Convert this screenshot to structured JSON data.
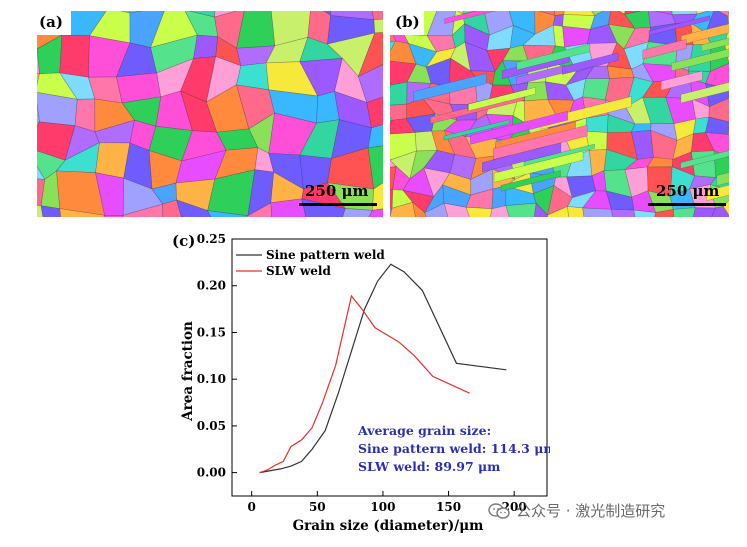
{
  "panels": {
    "a": {
      "label": "(a)",
      "scale_bar": "250 μm"
    },
    "b": {
      "label": "(b)",
      "scale_bar": "250 μm"
    },
    "c": {
      "label": "(c)"
    }
  },
  "chart_data": {
    "type": "line",
    "title": "",
    "xlabel": "Grain size (diameter)/μm",
    "ylabel": "Area fraction",
    "xlim": [
      -15,
      225
    ],
    "ylim": [
      -0.025,
      0.25
    ],
    "xticks": [
      0,
      50,
      100,
      150,
      200
    ],
    "yticks": [
      0.0,
      0.05,
      0.1,
      0.15,
      0.2,
      0.25
    ],
    "ytick_labels": [
      "0.00",
      "0.05",
      "0.10",
      "0.15",
      "0.20",
      "0.25"
    ],
    "legend_position": "top-left",
    "series": [
      {
        "name": "Sine pattern weld",
        "color": "#333333",
        "x": [
          6,
          14,
          22,
          30,
          38,
          46,
          56,
          66,
          76,
          86,
          96,
          106,
          116,
          130,
          156,
          194
        ],
        "y": [
          0.0,
          0.002,
          0.004,
          0.007,
          0.012,
          0.025,
          0.045,
          0.085,
          0.13,
          0.175,
          0.205,
          0.223,
          0.215,
          0.195,
          0.117,
          0.11
        ]
      },
      {
        "name": "SLW weld",
        "color": "#e8312a",
        "x": [
          6,
          12,
          18,
          24,
          30,
          38,
          46,
          54,
          64,
          76,
          84,
          94,
          112,
          124,
          138,
          166
        ],
        "y": [
          0.0,
          0.003,
          0.008,
          0.012,
          0.028,
          0.035,
          0.048,
          0.075,
          0.115,
          0.189,
          0.175,
          0.155,
          0.14,
          0.125,
          0.103,
          0.085
        ]
      }
    ],
    "annotation": {
      "color": "#2b2fb3",
      "lines": [
        "Average grain size:",
        "Sine pattern weld: 114.3 μm",
        "SLW weld: 89.97 μm"
      ]
    }
  },
  "watermark": {
    "text": "公众号 · 激光制造研究",
    "icon": "wechat-icon"
  },
  "grain_colors": [
    "#ff3b6b",
    "#2fd05a",
    "#b06cff",
    "#4aa3ff",
    "#ff8a3d",
    "#f7e93b",
    "#ff4fd8",
    "#3de0d0",
    "#8be05a",
    "#6f5cff",
    "#ff6a8a",
    "#39b8ff",
    "#c9ff4a",
    "#ff9fd8",
    "#54e38c",
    "#a0a0ff",
    "#ffb347",
    "#e84cff",
    "#33d6a0",
    "#ff5252",
    "#7fdcff",
    "#9b59ff",
    "#c8f06a",
    "#ff77aa"
  ]
}
